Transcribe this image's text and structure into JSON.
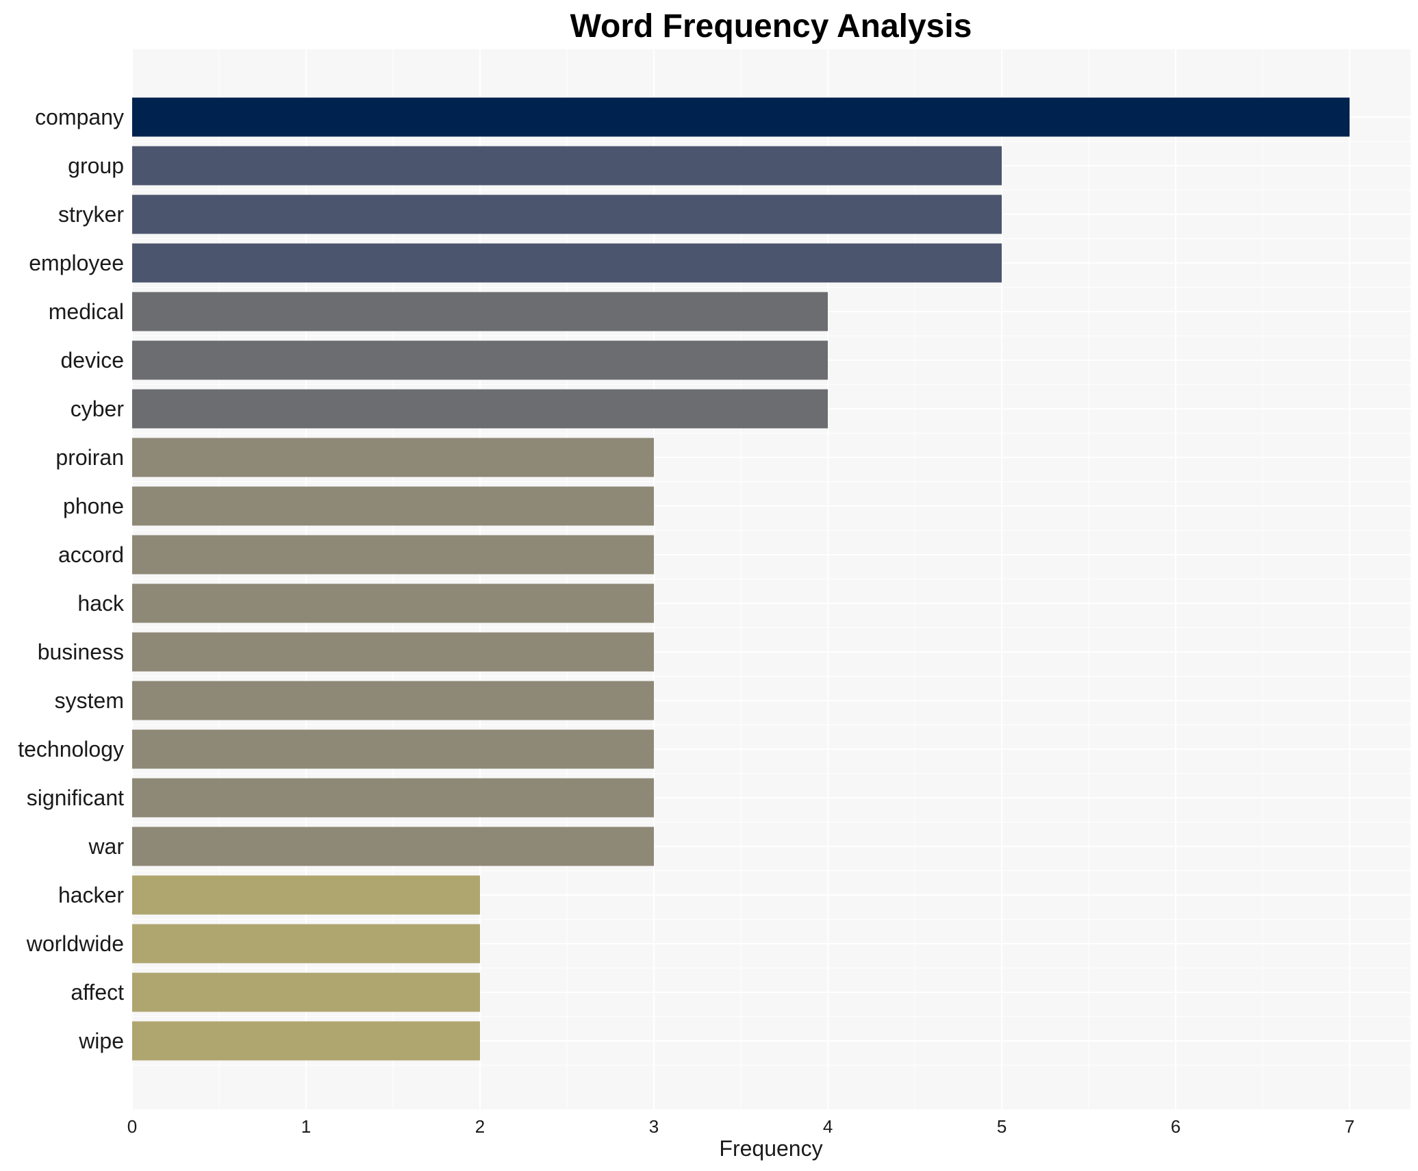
{
  "chart_data": {
    "type": "bar",
    "orientation": "horizontal",
    "title": "Word Frequency Analysis",
    "xlabel": "Frequency",
    "ylabel": "",
    "xlim": [
      0,
      7.35
    ],
    "xticks": [
      0,
      1,
      2,
      3,
      4,
      5,
      6,
      7
    ],
    "grid": true,
    "legend": "none",
    "plot_background": "#f7f7f7",
    "grid_color": "#ffffff",
    "categories": [
      "company",
      "group",
      "stryker",
      "employee",
      "medical",
      "device",
      "cyber",
      "proiran",
      "phone",
      "accord",
      "hack",
      "business",
      "system",
      "technology",
      "significant",
      "war",
      "hacker",
      "worldwide",
      "affect",
      "wipe"
    ],
    "values": [
      7,
      5,
      5,
      5,
      4,
      4,
      4,
      3,
      3,
      3,
      3,
      3,
      3,
      3,
      3,
      3,
      2,
      2,
      2,
      2
    ],
    "colors": [
      "#00224e",
      "#4c556e",
      "#4c556e",
      "#4c556e",
      "#6c6d71",
      "#6c6d71",
      "#6c6d71",
      "#8e8877",
      "#8e8877",
      "#8e8877",
      "#8e8877",
      "#8e8877",
      "#8e8877",
      "#8e8877",
      "#8e8877",
      "#8e8877",
      "#afa56f",
      "#afa56f",
      "#afa56f",
      "#afa56f"
    ]
  }
}
